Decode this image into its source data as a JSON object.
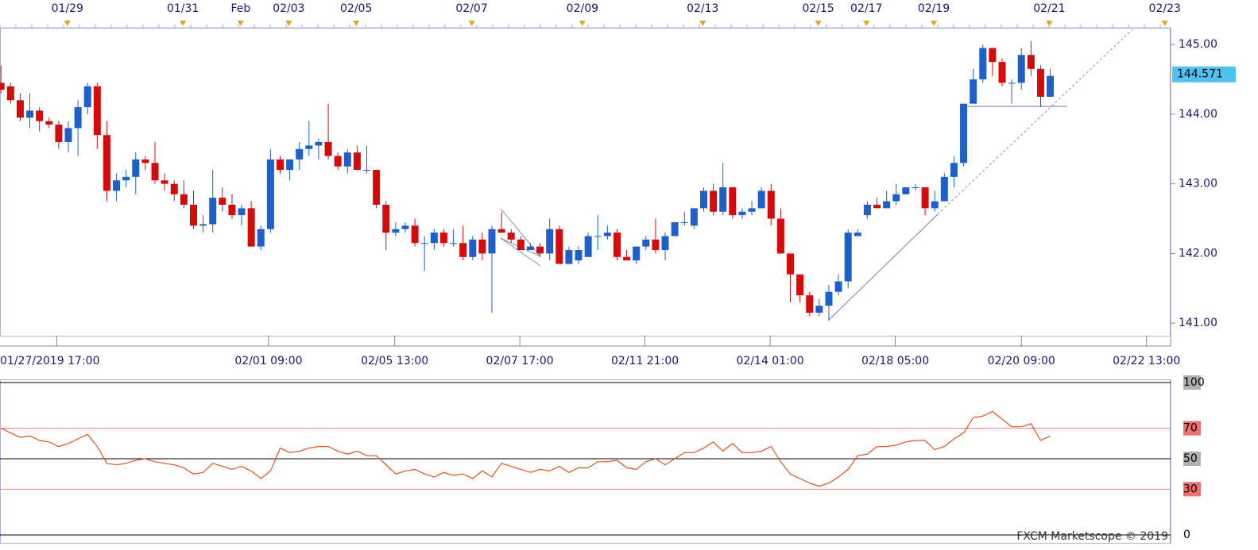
{
  "chart_data": [
    {
      "type": "candlestick",
      "up_color": "#1f5fc8",
      "down_color": "#d50a0a",
      "open": [
        144.45,
        144.4,
        144.2,
        143.95,
        144.05,
        143.9,
        143.85,
        143.6,
        143.8,
        144.1,
        144.4,
        143.7,
        142.9,
        143.05,
        143.1,
        143.35,
        143.3,
        143.05,
        143.0,
        142.85,
        142.7,
        142.4,
        142.42,
        142.8,
        142.7,
        142.55,
        142.65,
        142.1,
        142.35,
        143.35,
        143.2,
        143.35,
        143.5,
        143.55,
        143.6,
        143.4,
        143.25,
        143.45,
        143.2,
        143.2,
        142.7,
        142.3,
        142.35,
        142.4,
        142.15,
        142.15,
        142.3,
        142.15,
        142.15,
        141.95,
        142.2,
        142.0,
        142.35,
        142.3,
        142.2,
        142.05,
        142.1,
        142.0,
        142.35,
        141.85,
        141.9,
        141.95,
        142.25,
        142.25,
        142.3,
        141.95,
        141.9,
        142.1,
        142.2,
        142.05,
        142.25,
        142.45,
        142.4,
        142.65,
        142.9,
        142.6,
        142.95,
        142.55,
        142.6,
        142.65,
        142.9,
        142.5,
        142.0,
        141.7,
        141.4,
        141.15,
        141.25,
        141.45,
        141.6,
        142.25,
        142.55,
        142.7,
        142.65,
        142.75,
        142.85,
        142.95,
        142.95,
        142.65,
        142.75,
        143.1,
        143.3,
        144.15,
        144.5,
        144.95,
        144.75,
        144.45,
        144.45,
        144.85,
        144.65,
        144.25
      ],
      "high": [
        144.7,
        144.45,
        144.3,
        144.3,
        144.1,
        143.95,
        143.9,
        143.9,
        144.2,
        144.45,
        144.45,
        143.9,
        143.15,
        143.2,
        143.45,
        143.4,
        143.6,
        143.15,
        143.05,
        143.05,
        142.9,
        142.55,
        143.2,
        142.95,
        142.85,
        142.7,
        142.75,
        142.4,
        143.5,
        143.4,
        143.35,
        143.6,
        143.9,
        143.65,
        144.15,
        143.45,
        143.5,
        143.55,
        143.55,
        143.2,
        142.75,
        142.45,
        142.45,
        142.5,
        142.25,
        142.35,
        142.35,
        142.35,
        142.4,
        142.25,
        142.3,
        142.4,
        142.6,
        142.35,
        142.25,
        142.15,
        142.15,
        142.5,
        142.4,
        142.1,
        142.1,
        142.3,
        142.55,
        142.4,
        142.35,
        142.05,
        142.1,
        142.25,
        142.5,
        142.3,
        142.45,
        142.6,
        142.65,
        142.95,
        143.0,
        143.3,
        142.95,
        142.65,
        142.75,
        142.95,
        143.0,
        142.65,
        142.0,
        141.7,
        141.45,
        141.35,
        141.55,
        141.7,
        142.35,
        142.35,
        142.75,
        142.8,
        142.9,
        143.0,
        142.95,
        143.0,
        142.95,
        142.9,
        143.15,
        143.4,
        144.15,
        144.65,
        145.0,
        144.95,
        144.8,
        144.5,
        144.95,
        145.05,
        144.7,
        144.65
      ],
      "low": [
        144.3,
        144.15,
        143.9,
        143.8,
        143.75,
        143.8,
        143.5,
        143.45,
        143.4,
        144.0,
        143.5,
        142.75,
        142.75,
        142.95,
        142.85,
        143.2,
        143.0,
        142.9,
        142.75,
        142.65,
        142.35,
        142.3,
        142.3,
        142.6,
        142.5,
        142.4,
        142.1,
        142.05,
        142.3,
        143.15,
        143.05,
        143.2,
        143.4,
        143.35,
        143.35,
        143.2,
        143.15,
        143.2,
        143.15,
        142.65,
        142.05,
        142.25,
        142.3,
        142.1,
        141.75,
        142.05,
        142.1,
        142.1,
        141.9,
        141.9,
        141.9,
        141.15,
        142.3,
        142.15,
        142.05,
        142.05,
        141.95,
        141.9,
        141.85,
        141.85,
        141.85,
        141.95,
        142.05,
        142.2,
        141.9,
        141.9,
        141.85,
        142.05,
        142.0,
        141.9,
        142.25,
        142.4,
        142.35,
        142.6,
        142.55,
        142.55,
        142.5,
        142.5,
        142.55,
        142.65,
        142.4,
        142.0,
        141.3,
        141.3,
        141.1,
        141.1,
        141.05,
        141.4,
        141.5,
        142.25,
        142.5,
        142.65,
        142.65,
        142.7,
        142.85,
        142.9,
        142.55,
        142.6,
        142.75,
        142.95,
        143.25,
        144.15,
        144.45,
        144.55,
        144.4,
        144.15,
        144.35,
        144.55,
        144.1,
        144.25
      ],
      "close": [
        144.35,
        144.2,
        143.95,
        144.05,
        143.9,
        143.85,
        143.6,
        143.8,
        144.1,
        144.4,
        143.7,
        142.9,
        143.05,
        143.1,
        143.35,
        143.3,
        143.05,
        143.0,
        142.85,
        142.7,
        142.4,
        142.42,
        142.8,
        142.7,
        142.55,
        142.65,
        142.1,
        142.35,
        143.35,
        143.2,
        143.35,
        143.5,
        143.55,
        143.6,
        143.4,
        143.25,
        143.45,
        143.2,
        143.2,
        142.7,
        142.3,
        142.35,
        142.4,
        142.15,
        142.15,
        142.3,
        142.15,
        142.15,
        141.95,
        142.2,
        142.0,
        142.35,
        142.3,
        142.2,
        142.05,
        142.1,
        142.0,
        142.35,
        141.85,
        142.05,
        142.05,
        142.25,
        142.25,
        142.3,
        141.95,
        141.9,
        142.1,
        142.2,
        142.05,
        142.25,
        142.45,
        142.45,
        142.65,
        142.9,
        142.6,
        142.95,
        142.55,
        142.6,
        142.65,
        142.9,
        142.5,
        142.0,
        141.7,
        141.4,
        141.15,
        141.25,
        141.45,
        141.6,
        142.3,
        142.3,
        142.7,
        142.65,
        142.75,
        142.85,
        142.95,
        142.95,
        142.65,
        142.75,
        143.1,
        143.3,
        144.15,
        144.5,
        144.95,
        144.75,
        144.45,
        144.45,
        144.85,
        144.65,
        144.25,
        144.55
      ],
      "xlim": [
        0,
        121.6
      ],
      "ylim": [
        140.82,
        145.24
      ],
      "yticks": [
        {
          "value": 141,
          "label": "141.00"
        },
        {
          "value": 142,
          "label": "142.00"
        },
        {
          "value": 143,
          "label": "143.00"
        },
        {
          "value": 144,
          "label": "144.00"
        },
        {
          "value": 145,
          "label": "145.00"
        }
      ],
      "xticks": [
        {
          "value": 5.9,
          "label": "01/27/2019 17:00"
        },
        {
          "value": 27.9,
          "label": "02/01 09:00"
        },
        {
          "value": 41,
          "label": "02/05 13:00"
        },
        {
          "value": 54,
          "label": "02/07 17:00"
        },
        {
          "value": 67,
          "label": "02/11 21:00"
        },
        {
          "value": 80,
          "label": "02/14 01:00"
        },
        {
          "value": 93,
          "label": "02/18 05:00"
        },
        {
          "value": 106.1,
          "label": "02/20 09:00"
        },
        {
          "value": 119.1,
          "label": "02/22 13:00"
        }
      ],
      "event_ticks": [
        {
          "value": 7,
          "label": "01/29"
        },
        {
          "value": 19,
          "label": "01/31"
        },
        {
          "value": 25,
          "label": "Feb"
        },
        {
          "value": 30,
          "label": "02/03"
        },
        {
          "value": 37,
          "label": "02/05"
        },
        {
          "value": 49,
          "label": "02/07"
        },
        {
          "value": 60.5,
          "label": "02/09"
        },
        {
          "value": 73,
          "label": "02/13"
        },
        {
          "value": 85,
          "label": "02/15"
        },
        {
          "value": 90,
          "label": "02/17"
        },
        {
          "value": 97,
          "label": "02/19"
        },
        {
          "value": 109,
          "label": "02/21"
        },
        {
          "value": 121,
          "label": "02/23"
        }
      ],
      "last_price": {
        "value": 144.571,
        "label": "144.571"
      }
    },
    {
      "type": "line",
      "color": "#e0541c",
      "values": [
        70,
        67,
        64,
        65,
        62,
        61,
        58,
        60,
        63,
        66,
        58,
        47,
        46,
        47,
        49,
        50,
        48,
        47,
        46,
        44,
        40,
        41,
        47,
        45,
        43,
        45,
        42,
        37,
        42,
        57,
        54,
        55,
        57,
        58,
        58,
        55,
        53,
        55,
        52,
        52,
        46,
        40,
        42,
        43,
        40,
        38,
        41,
        39,
        40,
        37,
        42,
        38,
        47,
        45,
        43,
        41,
        43,
        42,
        45,
        41,
        44,
        44,
        48,
        48,
        49,
        44,
        43,
        48,
        50,
        46,
        50,
        54,
        54,
        57,
        61,
        55,
        60,
        54,
        54,
        55,
        58,
        48,
        40,
        37,
        34,
        32,
        34,
        38,
        43,
        52,
        53,
        58,
        58,
        59,
        61,
        62,
        62,
        56,
        58,
        63,
        67,
        77,
        78,
        81,
        76,
        71,
        71,
        73,
        62,
        65
      ],
      "ylim": [
        0,
        100
      ],
      "yticks": [
        100,
        70,
        50,
        30,
        0
      ],
      "watermark": "FXCM Marketscope © 2019"
    }
  ]
}
